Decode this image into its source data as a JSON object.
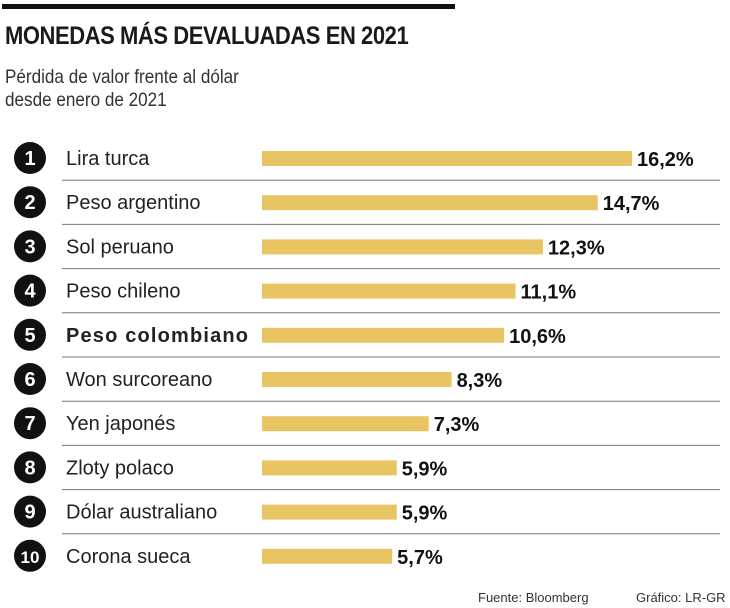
{
  "chart_data": {
    "type": "bar",
    "orientation": "horizontal",
    "title": "MONEDAS MÁS DEVALUADAS EN 2021",
    "subtitle": [
      "Pérdida de valor frente al dólar",
      "desde enero de 2021"
    ],
    "ranks": [
      "1",
      "2",
      "3",
      "4",
      "5",
      "6",
      "7",
      "8",
      "9",
      "10"
    ],
    "categories": [
      "Lira turca",
      "Peso argentino",
      "Sol peruano",
      "Peso chileno",
      "Peso colombiano",
      "Won surcoreano",
      "Yen japonés",
      "Zloty polaco",
      "Dólar australiano",
      "Corona sueca"
    ],
    "values": [
      16.2,
      14.7,
      12.3,
      11.1,
      10.6,
      8.3,
      7.3,
      5.9,
      5.9,
      5.7
    ],
    "value_labels": [
      "16,2%",
      "14,7%",
      "12,3%",
      "11,1%",
      "10,6%",
      "8,3%",
      "7,3%",
      "5,9%",
      "5,9%",
      "5,7%"
    ],
    "highlighted": "Peso colombiano",
    "bar_color": "#e8c462",
    "grid": false,
    "legend": "none"
  },
  "footer": {
    "source": "Fuente: Bloomberg",
    "credit": "Gráfico: LR-GR"
  }
}
